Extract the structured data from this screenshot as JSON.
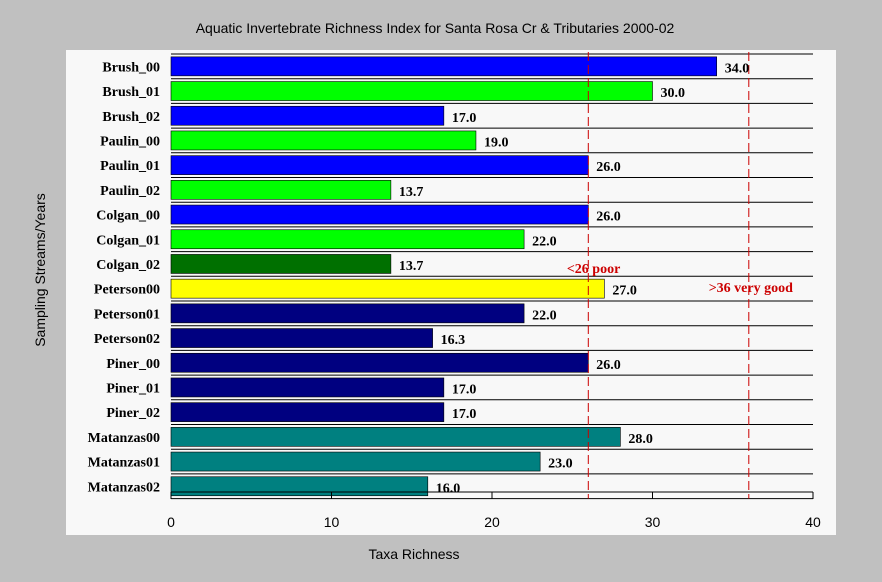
{
  "chart_data": {
    "type": "bar",
    "orientation": "horizontal",
    "title": "Aquatic Invertebrate Richness Index for Santa Rosa Cr & Tributaries 2000-02",
    "xlabel": "Taxa Richness",
    "ylabel": "Sampling Streams/Years",
    "xlim": [
      0,
      40
    ],
    "xticks": [
      "0",
      "10",
      "20",
      "30",
      "40"
    ],
    "grid": "horizontal lines between bars",
    "categories": [
      "Brush_00",
      "Brush_01",
      "Brush_02",
      "Paulin_00",
      "Paulin_01",
      "Paulin_02",
      "Colgan_00",
      "Colgan_01",
      "Colgan_02",
      "Peterson00",
      "Peterson01",
      "Peterson02",
      "Piner_00",
      "Piner_01",
      "Piner_02",
      "Matanzas00",
      "Matanzas01",
      "Matanzas02"
    ],
    "values": [
      34.0,
      30.0,
      17.0,
      19.0,
      26.0,
      13.7,
      26.0,
      22.0,
      13.7,
      27.0,
      22.0,
      16.3,
      26.0,
      17.0,
      17.0,
      28.0,
      23.0,
      16.0
    ],
    "value_labels": [
      "34.0",
      "30.0",
      "17.0",
      "19.0",
      "26.0",
      "13.7",
      "26.0",
      "22.0",
      "13.7",
      "27.0",
      "22.0",
      "16.3",
      "26.0",
      "17.0",
      "17.0",
      "28.0",
      "23.0",
      "16.0"
    ],
    "colors": [
      "#0000ff",
      "#00ff00",
      "#0000ff",
      "#00ff00",
      "#0000ff",
      "#00ff00",
      "#0000ff",
      "#00ff00",
      "#007000",
      "#ffff00",
      "#000080",
      "#000080",
      "#000080",
      "#000080",
      "#000080",
      "#008080",
      "#008080",
      "#008080"
    ],
    "reference_lines": [
      {
        "x": 26,
        "label": "<26 poor",
        "color": "#cc0000"
      },
      {
        "x": 36,
        "label": ">36 very good",
        "color": "#cc0000"
      }
    ]
  }
}
